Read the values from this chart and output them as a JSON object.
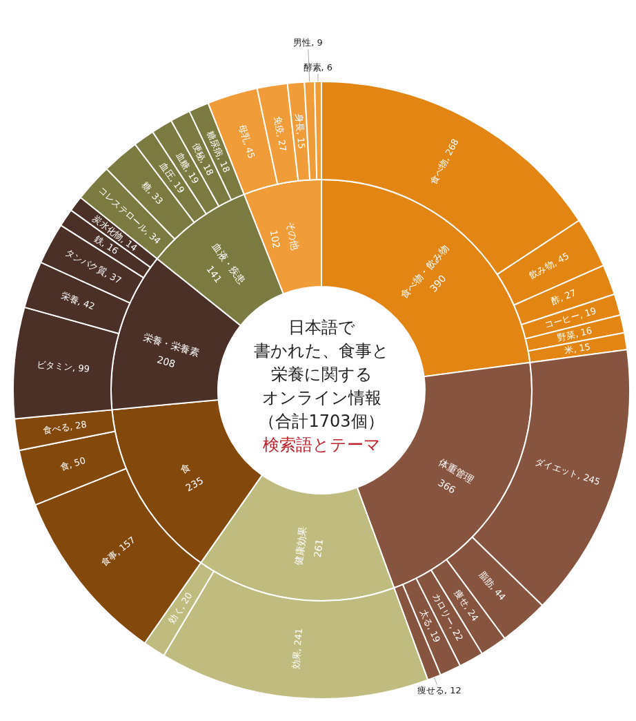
{
  "chart_data": [
    {
      "type": "donut",
      "title": "日本語で書かれた、食事と栄養に関するオンライン情報（合計1703個）",
      "subtitle": "検索語とテーマ",
      "data_labels": true,
      "categories": [
        "食べ物・飲み物",
        "体重管理",
        "健康効果",
        "食",
        "栄養・栄養素",
        "血液・疾患",
        "その他"
      ],
      "values": [
        390,
        366,
        261,
        235,
        208,
        141,
        102
      ],
      "colors": [
        "#e38512",
        "#87553f",
        "#c0bb7e",
        "#83480c",
        "#4a3026",
        "#7b7a40",
        "#f09c38"
      ]
    },
    {
      "type": "donut",
      "categories": [
        "食べ物",
        "飲み物",
        "酢",
        "コーヒー",
        "野菜",
        "米",
        "ダイエット",
        "脂肪",
        "痩せ",
        "カロリー",
        "太る",
        "痩せる",
        "効果",
        "効く",
        "食事",
        "食",
        "食べる",
        "ビタミン",
        "栄養",
        "タンパク質",
        "鉄",
        "炭水化物",
        "コレステロール",
        "糖",
        "血圧",
        "血糖",
        "便秘",
        "糖尿病",
        "母乳",
        "免疫",
        "身長",
        "男性",
        "酵素"
      ],
      "values": [
        268,
        45,
        27,
        19,
        16,
        15,
        245,
        44,
        24,
        22,
        19,
        12,
        241,
        20,
        157,
        50,
        28,
        99,
        42,
        37,
        16,
        14,
        34,
        33,
        19,
        19,
        18,
        18,
        45,
        27,
        15,
        9,
        6
      ],
      "value_labels": [
        ", 268",
        ", 45",
        ", 27",
        ", 19",
        ", 16",
        ", 15",
        ", 245",
        ", 44",
        ", 24",
        ", 22",
        ", 19",
        ", 12",
        ", 241",
        ", 20",
        ", 157",
        ", 50",
        ", 28",
        ", 99",
        ", 42",
        ", 37",
        ", 16",
        ", 14",
        ", 34",
        ", 33",
        ", 19",
        ", 19",
        ", 18",
        ", 18",
        ", 45",
        ", 27",
        ", 15",
        ", 9",
        ", 6"
      ],
      "colors": [
        "#e38512",
        "#e38512",
        "#e38512",
        "#e38512",
        "#e38512",
        "#e38512",
        "#87553f",
        "#87553f",
        "#87553f",
        "#87553f",
        "#87553f",
        "#87553f",
        "#c0bb7e",
        "#c0bb7e",
        "#83480c",
        "#83480c",
        "#83480c",
        "#4a3026",
        "#4a3026",
        "#4a3026",
        "#4a3026",
        "#4a3026",
        "#7b7a40",
        "#7b7a40",
        "#7b7a40",
        "#7b7a40",
        "#7b7a40",
        "#7b7a40",
        "#f09c38",
        "#f09c38",
        "#f09c38",
        "#f09c38",
        "#f09c38"
      ]
    }
  ]
}
